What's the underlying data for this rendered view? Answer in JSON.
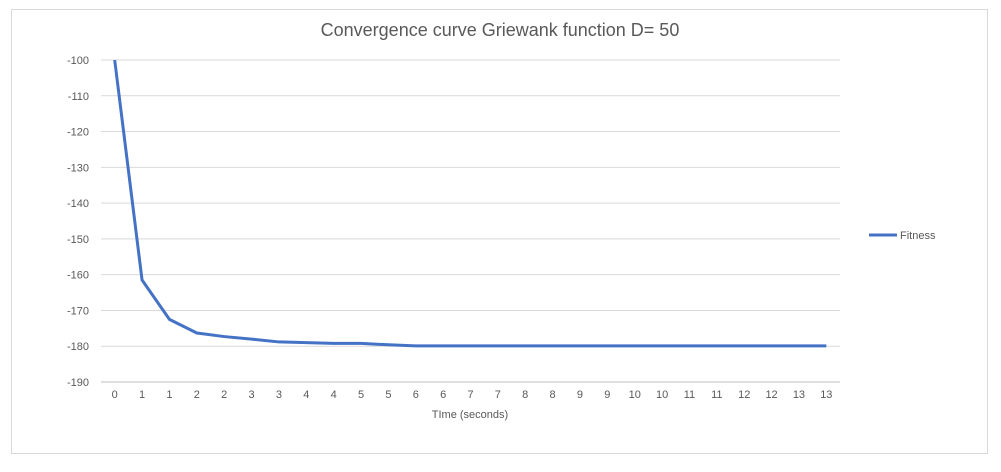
{
  "chart_data": {
    "type": "line",
    "title": "Convergence curve Griewank function D= 50",
    "xlabel": "TIme (seconds)",
    "ylabel": "",
    "ylim": [
      -190,
      -100
    ],
    "yticks": [
      -100,
      -110,
      -120,
      -130,
      -140,
      -150,
      -160,
      -170,
      -180,
      -190
    ],
    "x_tick_labels": [
      "0",
      "1",
      "1",
      "2",
      "2",
      "3",
      "3",
      "4",
      "4",
      "5",
      "5",
      "6",
      "6",
      "7",
      "7",
      "8",
      "8",
      "9",
      "9",
      "10",
      "10",
      "11",
      "11",
      "12",
      "12",
      "13",
      "13"
    ],
    "series": [
      {
        "name": "Fitness",
        "color": "#4472c4",
        "values": [
          -100,
          -161.5,
          -172.5,
          -176.3,
          -177.3,
          -178.0,
          -178.8,
          -179.0,
          -179.2,
          -179.2,
          -179.6,
          -179.9,
          -179.9,
          -179.9,
          -179.9,
          -179.9,
          -179.9,
          -179.9,
          -179.9,
          -179.9,
          -179.9,
          -179.9,
          -179.9,
          -179.9,
          -179.9,
          -179.9,
          -179.9
        ]
      }
    ],
    "grid": true,
    "legend_position": "right"
  }
}
